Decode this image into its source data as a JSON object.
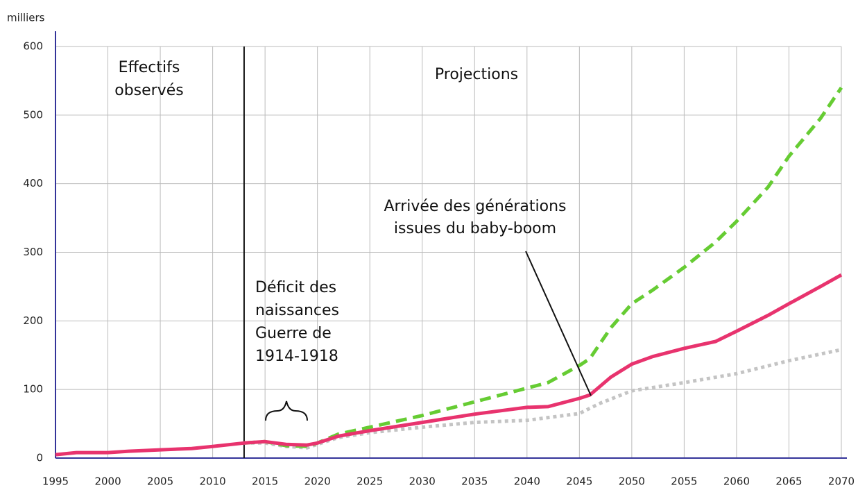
{
  "chart_data": {
    "type": "line",
    "y_label": "milliers",
    "xlim": [
      1995,
      2070
    ],
    "xticks": [
      1995,
      2000,
      2005,
      2010,
      2015,
      2020,
      2025,
      2030,
      2035,
      2040,
      2045,
      2050,
      2055,
      2060,
      2065,
      2070
    ],
    "ylim": [
      0,
      600
    ],
    "yticks": [
      0,
      100,
      200,
      300,
      400,
      500,
      600
    ],
    "grid": true,
    "divider_x": 2013,
    "series": [
      {
        "color": "#e8336e",
        "style": "solid",
        "x": [
          1995,
          1997,
          2000,
          2002,
          2005,
          2008,
          2010,
          2013,
          2015,
          2017,
          2019,
          2020,
          2022,
          2025,
          2030,
          2035,
          2040,
          2042,
          2045,
          2046,
          2048,
          2050,
          2052,
          2055,
          2058,
          2060,
          2063,
          2065,
          2068,
          2070
        ],
        "values": [
          5,
          8,
          8,
          10,
          12,
          14,
          17,
          22,
          24,
          20,
          19,
          22,
          32,
          40,
          52,
          64,
          74,
          75,
          87,
          92,
          118,
          137,
          148,
          160,
          170,
          185,
          208,
          225,
          250,
          267
        ]
      },
      {
        "color": "#66cc33",
        "style": "dashed",
        "x": [
          2013,
          2015,
          2017,
          2019,
          2020,
          2022,
          2025,
          2030,
          2035,
          2040,
          2042,
          2045,
          2046,
          2048,
          2050,
          2052,
          2055,
          2058,
          2060,
          2063,
          2065,
          2068,
          2070
        ],
        "values": [
          22,
          24,
          18,
          17,
          22,
          35,
          45,
          62,
          82,
          102,
          110,
          135,
          145,
          190,
          225,
          245,
          278,
          315,
          345,
          395,
          440,
          495,
          540
        ]
      },
      {
        "color": "#c4c4c4",
        "style": "dotted",
        "x": [
          2013,
          2015,
          2017,
          2019,
          2020,
          2022,
          2025,
          2030,
          2035,
          2040,
          2045,
          2047,
          2050,
          2055,
          2060,
          2065,
          2070
        ],
        "values": [
          22,
          22,
          17,
          15,
          20,
          30,
          37,
          45,
          52,
          55,
          65,
          80,
          98,
          110,
          123,
          142,
          158
        ]
      }
    ],
    "annotations": [
      {
        "lines": [
          "Effectifs",
          "observés"
        ]
      },
      {
        "lines": [
          "Projections"
        ]
      },
      {
        "lines": [
          "Arrivée des générations",
          "issues du baby-boom"
        ]
      },
      {
        "lines": [
          "Déficit des",
          "naissances",
          "Guerre de",
          "1914-1918"
        ]
      }
    ]
  }
}
